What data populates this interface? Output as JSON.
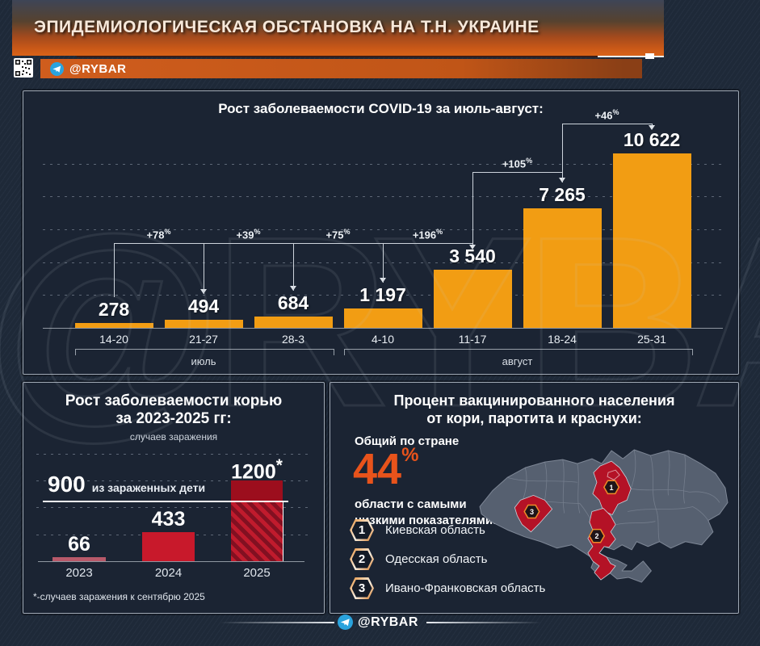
{
  "header": {
    "title": "ЭПИДЕМИОЛОГИЧЕСКАЯ ОБСТАНОВКА НА Т.Н. УКРАИНЕ",
    "channel": "@RYBAR"
  },
  "watermark": "@RYBAR",
  "footer": {
    "channel": "@RYBAR"
  },
  "chart_data": [
    {
      "id": "covid",
      "type": "bar",
      "title": "Рост заболеваемости COVID-19 за июль-август:",
      "categories": [
        "14-20",
        "21-27",
        "28-3",
        "4-10",
        "11-17",
        "18-24",
        "25-31"
      ],
      "values": [
        278,
        494,
        684,
        1197,
        3540,
        7265,
        10622
      ],
      "value_labels": [
        "278",
        "494",
        "684",
        "1 197",
        "3 540",
        "7 265",
        "10 622"
      ],
      "growth_annotations": [
        {
          "from": 0,
          "to": 1,
          "text": "+78",
          "sup": "%"
        },
        {
          "from": 1,
          "to": 2,
          "text": "+39",
          "sup": "%"
        },
        {
          "from": 2,
          "to": 3,
          "text": "+75",
          "sup": "%"
        },
        {
          "from": 3,
          "to": 4,
          "text": "+196",
          "sup": "%"
        },
        {
          "from": 4,
          "to": 5,
          "text": "+105",
          "sup": "%"
        },
        {
          "from": 5,
          "to": 6,
          "text": "+46",
          "sup": "%"
        }
      ],
      "month_groups": [
        {
          "label": "июль",
          "from": 0,
          "to": 2
        },
        {
          "label": "август",
          "from": 3,
          "to": 6
        }
      ],
      "bar_color": "#f29d13",
      "ylim": [
        0,
        10800
      ],
      "gridline_step": 2000,
      "grid": "dotted",
      "legend": "none"
    },
    {
      "id": "measles",
      "type": "bar",
      "title_lines": [
        "Рост заболеваемости корью",
        "за 2023-2025 гг:"
      ],
      "subtitle": "случаев заражения",
      "categories": [
        "2023",
        "2024",
        "2025"
      ],
      "values": [
        66,
        433,
        1200
      ],
      "value_labels": [
        {
          "text": "66",
          "sup": ""
        },
        {
          "text": "433",
          "sup": ""
        },
        {
          "text": "1200",
          "sup": "*"
        }
      ],
      "bar_colors": [
        "#b8596a",
        "#c8192b",
        "#9c0e1d"
      ],
      "children_line": {
        "value": 900,
        "label_value": "900",
        "label_text": "из зараженных дети"
      },
      "footnote": "*-случаев заражения к сентябрю 2025",
      "ylim": [
        0,
        1300
      ],
      "gridline_step": 400,
      "grid": "dotted",
      "legend": "none"
    },
    {
      "id": "vaccination",
      "type": "map",
      "title_lines": [
        "Процент вакцинированного населения",
        "от кори, паротита и краснухи:"
      ],
      "country_label": "Общий по стране",
      "country_value": "44",
      "country_value_sup": "%",
      "intro_lines": [
        "области с самыми",
        "низкими показателями:"
      ],
      "regions": [
        {
          "num": "1",
          "name": "Киевская область"
        },
        {
          "num": "2",
          "name": "Одесская область"
        },
        {
          "num": "3",
          "name": "Ивано-Франковская область"
        }
      ],
      "accent_color": "#e8531b",
      "region_color": "#b41226",
      "map_base_color": "#566070"
    }
  ]
}
